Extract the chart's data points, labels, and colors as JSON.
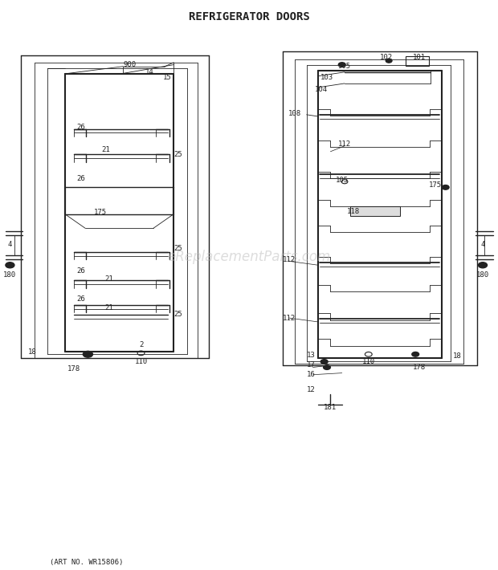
{
  "title": "REFRIGERATOR DOORS",
  "footer": "(ART NO. WR15806)",
  "bg_color": "#ffffff",
  "title_fontsize": 10,
  "footer_fontsize": 6.5,
  "watermark": "eReplacementParts.com",
  "watermark_color": "#bbbbbb",
  "watermark_fontsize": 12,
  "line_color": "#222222",
  "label_fontsize": 6.5
}
